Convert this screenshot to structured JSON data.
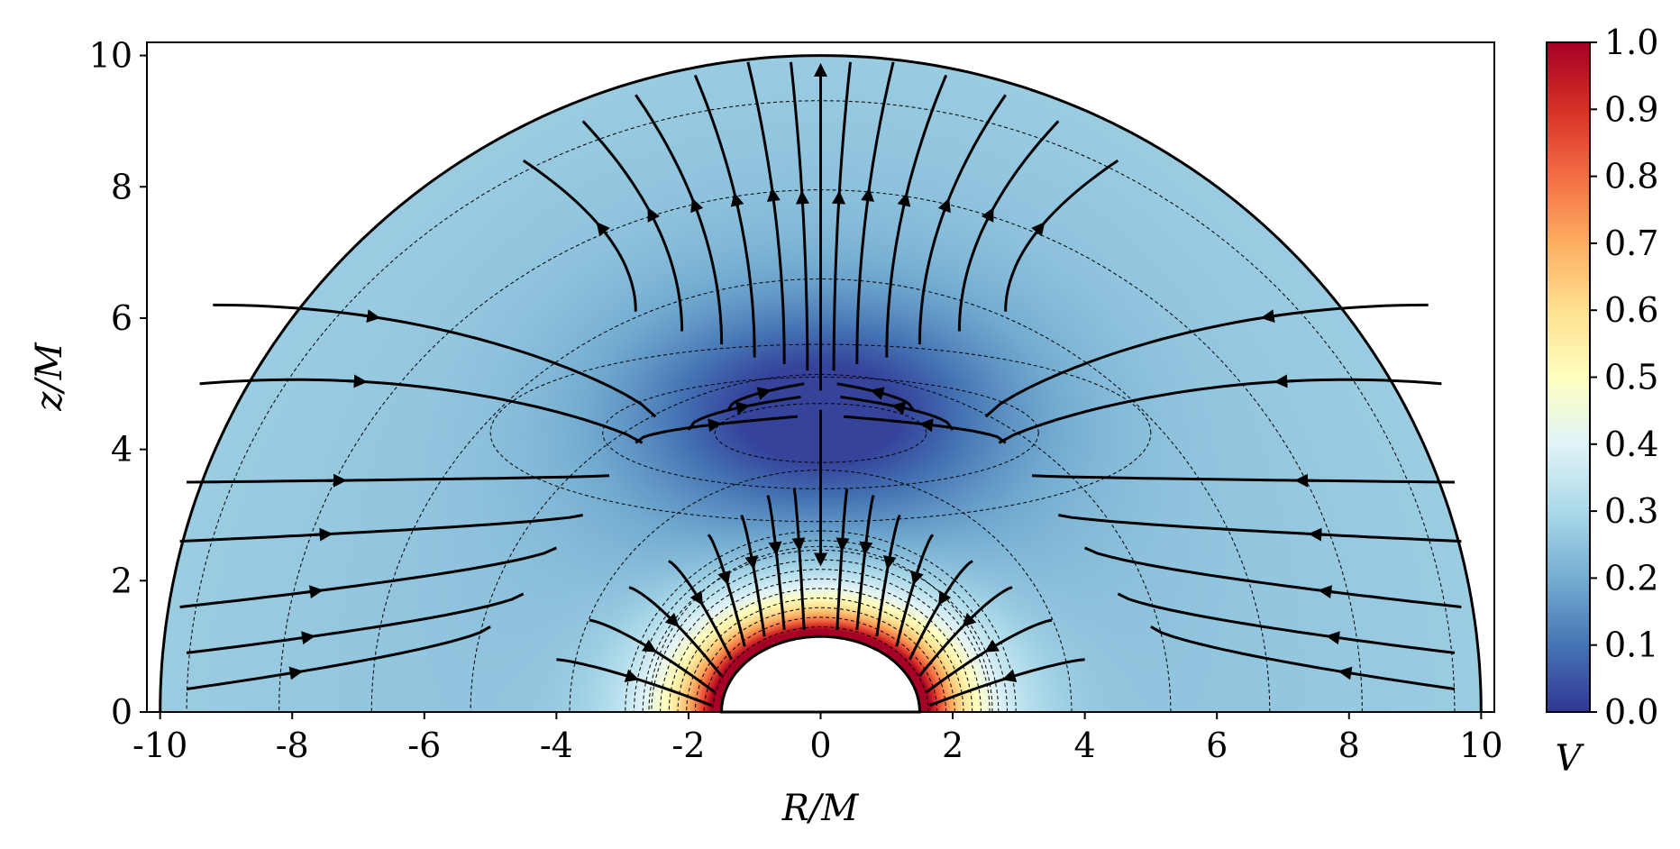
{
  "chart_data": {
    "type": "heatmap",
    "title": "",
    "xlabel": "R/M",
    "ylabel": "z/M",
    "colorbar_label": "V",
    "xlim": [
      -10.2,
      10.2
    ],
    "ylim": [
      0,
      10.2
    ],
    "x_ticks": [
      -10,
      -8,
      -6,
      -4,
      -2,
      0,
      2,
      4,
      6,
      8,
      10
    ],
    "y_ticks": [
      0,
      2,
      4,
      6,
      8,
      10
    ],
    "x_tick_labels": [
      "-10",
      "-8",
      "-6",
      "-4",
      "-2",
      "0",
      "2",
      "4",
      "6",
      "8",
      "10"
    ],
    "y_tick_labels": [
      "0",
      "2",
      "4",
      "6",
      "8",
      "10"
    ],
    "colorbar": {
      "range": [
        0.0,
        1.0
      ],
      "ticks": [
        0.0,
        0.1,
        0.2,
        0.3,
        0.4,
        0.5,
        0.6,
        0.7,
        0.8,
        0.9,
        1.0
      ],
      "tick_labels": [
        "0.0",
        "0.1",
        "0.2",
        "0.3",
        "0.4",
        "0.5",
        "0.6",
        "0.7",
        "0.8",
        "0.9",
        "1.0"
      ],
      "colormap": "RdYlBu_r",
      "colors": [
        "#313695",
        "#4575b4",
        "#74add1",
        "#abd9e9",
        "#e0f3f8",
        "#ffffbf",
        "#fee090",
        "#fdae61",
        "#f46d43",
        "#d73027",
        "#a50026"
      ]
    },
    "domain": {
      "outer_radius": 10.0,
      "inner_radius": 1.5,
      "inner_height": 1.15
    },
    "field_features": {
      "minimum": {
        "R": 0,
        "z": 4.6,
        "V": 0.03
      },
      "maximum_near_inner_boundary": {
        "V": 1.0
      },
      "outer_boundary_value": 0.27
    },
    "streamlines": "field lines flowing outward from the central minimum, converging onto the inner boundary from below",
    "grid": false,
    "legend": "none"
  }
}
